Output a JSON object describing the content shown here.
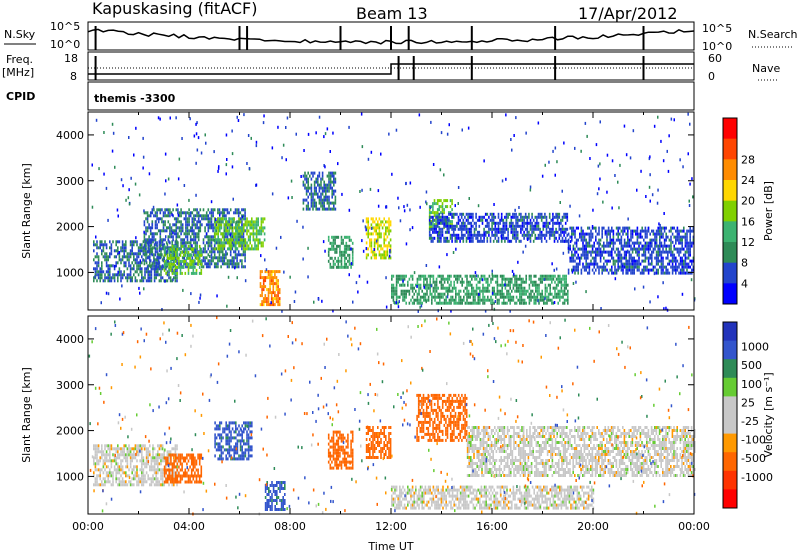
{
  "header": {
    "station": "Kapuskasing (fitACF)",
    "beam": "Beam 13",
    "date": "17/Apr/2012"
  },
  "noise_panel": {
    "left_label": "N.Sky",
    "right_label": "N.Search",
    "left_ticks": [
      "10^5",
      "10^0"
    ],
    "right_ticks": [
      "10^5",
      "10^0"
    ]
  },
  "freq_panel": {
    "left_label_1": "Freq.",
    "left_label_2": "[MHz]",
    "right_label": "Nave",
    "left_ticks": [
      "18",
      "8"
    ],
    "right_ticks": [
      "60",
      "0"
    ]
  },
  "cpid_panel": {
    "label": "CPID",
    "value": "themis -3300"
  },
  "colors": {
    "power_scale": [
      "#0000ff",
      "#2244cc",
      "#2e8b57",
      "#3cb371",
      "#80d000",
      "#ffd700",
      "#ff8c00",
      "#ff4500",
      "#ff0000"
    ],
    "velocity_scale": [
      "#2233bb",
      "#3355cc",
      "#2e8b57",
      "#66cc33",
      "#c8c8c8",
      "#c8c8c8",
      "#ff9900",
      "#ff6600",
      "#ff3300",
      "#ff0000"
    ]
  },
  "chart_data": [
    {
      "type": "heatmap",
      "panel": "power",
      "ylabel": "Slant Range [km]",
      "ylim": [
        180,
        4500
      ],
      "yticks": [
        "1000",
        "2000",
        "3000",
        "4000"
      ],
      "xlim": [
        0,
        24
      ],
      "colorbar": {
        "label": "Power [dB]",
        "ticks": [
          "4",
          "8",
          "12",
          "16",
          "20",
          "24",
          "28"
        ]
      },
      "regions": [
        {
          "t0": 0.2,
          "t1": 3.5,
          "r0": 800,
          "r1": 1700,
          "value": 8
        },
        {
          "t0": 2.2,
          "t1": 6.2,
          "r0": 1100,
          "r1": 2400,
          "value": 8
        },
        {
          "t0": 3.0,
          "t1": 4.5,
          "r0": 1000,
          "r1": 1600,
          "value": 16
        },
        {
          "t0": 5.0,
          "t1": 7.0,
          "r0": 1500,
          "r1": 2200,
          "value": 16
        },
        {
          "t0": 6.8,
          "t1": 7.6,
          "r0": 300,
          "r1": 1050,
          "value": 26
        },
        {
          "t0": 8.5,
          "t1": 9.8,
          "r0": 2400,
          "r1": 3200,
          "value": 8
        },
        {
          "t0": 9.5,
          "t1": 10.5,
          "r0": 1100,
          "r1": 1800,
          "value": 12
        },
        {
          "t0": 11.0,
          "t1": 12.0,
          "r0": 1300,
          "r1": 2200,
          "value": 20
        },
        {
          "t0": 12.0,
          "t1": 19.0,
          "r0": 300,
          "r1": 950,
          "value": 12
        },
        {
          "t0": 13.5,
          "t1": 14.4,
          "r0": 2000,
          "r1": 2600,
          "value": 16
        },
        {
          "t0": 13.5,
          "t1": 19.0,
          "r0": 1700,
          "r1": 2300,
          "value": 6
        },
        {
          "t0": 19.0,
          "t1": 24.0,
          "r0": 1000,
          "r1": 2000,
          "value": 6
        }
      ]
    },
    {
      "type": "heatmap",
      "panel": "velocity",
      "ylabel": "Slant Range [km]",
      "xlabel": "Time UT",
      "ylim": [
        180,
        4500
      ],
      "yticks": [
        "1000",
        "2000",
        "3000",
        "4000"
      ],
      "xlim": [
        0,
        24
      ],
      "xticks": [
        "00:00",
        "04:00",
        "08:00",
        "12:00",
        "16:00",
        "20:00",
        "00:00"
      ],
      "colorbar": {
        "label": "Velocity [m s⁻¹]",
        "ticks": [
          "1000",
          "500",
          "100",
          "25",
          "-25",
          "-100",
          "-500",
          "-1000"
        ]
      },
      "regions": [
        {
          "t0": 0.2,
          "t1": 3.5,
          "r0": 800,
          "r1": 1700,
          "value": 0
        },
        {
          "t0": 3.0,
          "t1": 4.5,
          "r0": 900,
          "r1": 1500,
          "value": -150
        },
        {
          "t0": 5.0,
          "t1": 6.5,
          "r0": 1400,
          "r1": 2200,
          "value": 120
        },
        {
          "t0": 7.0,
          "t1": 7.8,
          "r0": 300,
          "r1": 900,
          "value": 120
        },
        {
          "t0": 9.5,
          "t1": 10.5,
          "r0": 1200,
          "r1": 2000,
          "value": -200
        },
        {
          "t0": 11.0,
          "t1": 12.0,
          "r0": 1400,
          "r1": 2100,
          "value": -300
        },
        {
          "t0": 13.0,
          "t1": 15.0,
          "r0": 1800,
          "r1": 2800,
          "value": -300
        },
        {
          "t0": 12.0,
          "t1": 20.0,
          "r0": 300,
          "r1": 800,
          "value": 0
        },
        {
          "t0": 15.0,
          "t1": 24.0,
          "r0": 1000,
          "r1": 2100,
          "value": 0
        }
      ]
    }
  ]
}
